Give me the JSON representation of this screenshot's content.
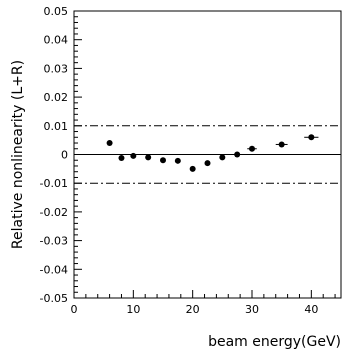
{
  "chart_data": {
    "type": "scatter",
    "xlabel": "beam energy(GeV)",
    "ylabel": "Relative nonlinearity (L+R)",
    "xlim": [
      0,
      45
    ],
    "ylim": [
      -0.05,
      0.05
    ],
    "x_ticks": [
      0,
      10,
      20,
      30,
      40
    ],
    "x_tick_labels": [
      "0",
      "10",
      "20",
      "30",
      "40"
    ],
    "y_ticks": [
      -0.05,
      -0.04,
      -0.03,
      -0.02,
      -0.01,
      0,
      0.01,
      0.02,
      0.03,
      0.04,
      0.05
    ],
    "y_tick_labels": [
      "-0.05",
      "-0.04",
      "-0.03",
      "-0.02",
      "-0.01",
      "0",
      "0.01",
      "0.02",
      "0.03",
      "0.04",
      "0.05"
    ],
    "reference_lines": [
      {
        "y": 0,
        "style": "solid"
      },
      {
        "y": 0.01,
        "style": "dash-dot"
      },
      {
        "y": -0.01,
        "style": "dash-dot"
      }
    ],
    "grid": false,
    "series": [
      {
        "points": [
          {
            "x": 6,
            "y": 0.004
          },
          {
            "x": 8,
            "y": -0.0012
          },
          {
            "x": 10,
            "y": -0.0005
          },
          {
            "x": 12.5,
            "y": -0.001
          },
          {
            "x": 15,
            "y": -0.002
          },
          {
            "x": 17.5,
            "y": -0.0022
          },
          {
            "x": 20,
            "y": -0.005
          },
          {
            "x": 22.5,
            "y": -0.003
          },
          {
            "x": 25,
            "y": -0.001
          },
          {
            "x": 27.5,
            "y": 0
          },
          {
            "x": 30,
            "y": 0.002
          },
          {
            "x": 35,
            "y": 0.0035
          },
          {
            "x": 40,
            "y": 0.006
          }
        ],
        "x_error": [
          0,
          0,
          0,
          0,
          0,
          0,
          0,
          0,
          0,
          0,
          0.8,
          1.0,
          1.2
        ],
        "color": "#000000"
      }
    ]
  }
}
